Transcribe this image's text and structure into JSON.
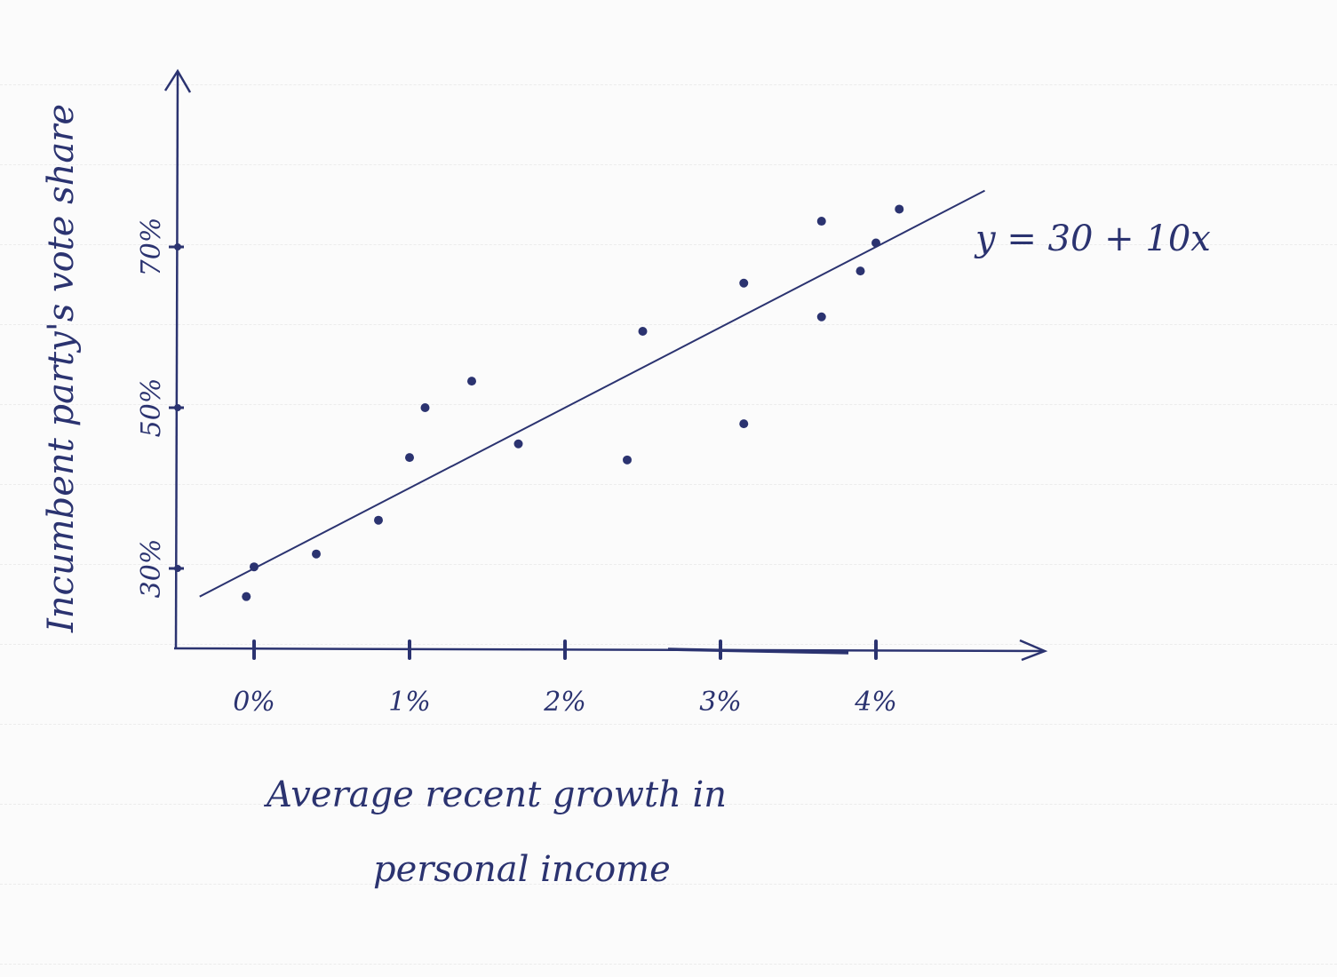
{
  "chart_data": {
    "type": "scatter",
    "title": "",
    "xlabel_lines": [
      "Average recent growth in",
      "personal income"
    ],
    "ylabel": "Incumbent party's vote share",
    "x_ticks": [
      {
        "value": 0,
        "label": "0%"
      },
      {
        "value": 1,
        "label": "1%"
      },
      {
        "value": 2,
        "label": "2%"
      },
      {
        "value": 3,
        "label": "3%"
      },
      {
        "value": 4,
        "label": "4%"
      }
    ],
    "y_ticks": [
      {
        "value": 30,
        "label": "30%"
      },
      {
        "value": 50,
        "label": "50%"
      },
      {
        "value": 70,
        "label": "70%"
      }
    ],
    "xlim": [
      -0.5,
      5.1
    ],
    "ylim": [
      20,
      92
    ],
    "grid": false,
    "points": [
      {
        "x": -0.05,
        "y": 26.5
      },
      {
        "x": 0.0,
        "y": 30.2
      },
      {
        "x": 0.4,
        "y": 31.8
      },
      {
        "x": 0.8,
        "y": 36.0
      },
      {
        "x": 1.0,
        "y": 43.8
      },
      {
        "x": 1.1,
        "y": 50.0
      },
      {
        "x": 1.4,
        "y": 53.3
      },
      {
        "x": 1.7,
        "y": 45.5
      },
      {
        "x": 2.4,
        "y": 43.5
      },
      {
        "x": 2.5,
        "y": 59.5
      },
      {
        "x": 3.15,
        "y": 48.0
      },
      {
        "x": 3.15,
        "y": 65.5
      },
      {
        "x": 3.65,
        "y": 61.3
      },
      {
        "x": 3.65,
        "y": 73.2
      },
      {
        "x": 3.9,
        "y": 67.0
      },
      {
        "x": 4.0,
        "y": 70.5
      },
      {
        "x": 4.15,
        "y": 74.7
      }
    ],
    "fit_line": {
      "intercept": 30,
      "slope": 10,
      "x_range": [
        -0.35,
        4.7
      ],
      "equation_label": "y = 30 + 10x"
    }
  }
}
